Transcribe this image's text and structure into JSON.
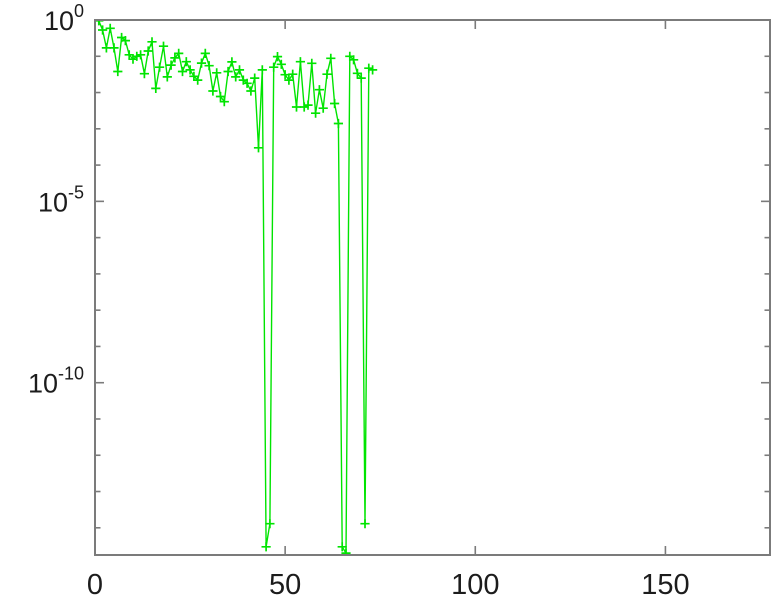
{
  "figure": {
    "background": "#ffffff",
    "line_color": "#00e400",
    "axis_color": "#7b7b7b",
    "label_color": "#1c1c1c"
  },
  "chart_data": {
    "type": "line",
    "title": "",
    "xlabel": "",
    "ylabel": "",
    "legend": null,
    "grid": false,
    "y_scale": "log",
    "marker": "+",
    "xlim": [
      0,
      177.5
    ],
    "ylim_log": [
      -14.75,
      0
    ],
    "x_ticks": [
      0,
      50,
      100,
      150
    ],
    "x_tick_labels": [
      "0",
      "50",
      "100",
      "150"
    ],
    "y_major_tick_exponents": [
      0,
      -5,
      -10
    ],
    "y_tick_base": "10",
    "y_tick_exponent_labels": [
      "0",
      "-5",
      "-10"
    ],
    "y_minor_ticks_every_decade": true,
    "x": [
      1,
      2,
      3,
      4,
      5,
      6,
      7,
      8,
      9,
      10,
      11,
      12,
      13,
      14,
      15,
      16,
      17,
      18,
      19,
      20,
      21,
      22,
      23,
      24,
      25,
      26,
      27,
      28,
      29,
      30,
      31,
      32,
      33,
      34,
      35,
      36,
      37,
      38,
      39,
      40,
      41,
      42,
      43,
      44,
      45,
      46,
      47,
      48,
      49,
      50,
      51,
      52,
      53,
      54,
      55,
      56,
      57,
      58,
      59,
      60,
      61,
      62,
      63,
      64,
      65,
      66,
      67,
      68,
      69,
      70,
      71,
      72,
      73
    ],
    "values": [
      0.95,
      0.53,
      0.17,
      0.59,
      0.17,
      0.038,
      0.33,
      0.27,
      0.11,
      0.083,
      0.1,
      0.11,
      0.033,
      0.14,
      0.25,
      0.013,
      0.05,
      0.19,
      0.027,
      0.057,
      0.09,
      0.12,
      0.038,
      0.071,
      0.042,
      0.028,
      0.022,
      0.065,
      0.12,
      0.055,
      0.011,
      0.035,
      0.0078,
      0.0056,
      0.038,
      0.07,
      0.027,
      0.042,
      0.022,
      0.018,
      0.011,
      0.025,
      0.0003,
      0.042,
      3e-15,
      1.3e-14,
      0.05,
      0.098,
      0.06,
      0.031,
      0.022,
      0.032,
      0.004,
      0.071,
      0.004,
      0.0045,
      0.064,
      0.0027,
      0.012,
      0.0037,
      0.032,
      0.088,
      0.005,
      0.0014,
      3e-15,
      2e-15,
      0.1,
      0.08,
      0.034,
      0.025,
      1.3e-14,
      0.047,
      0.042
    ]
  }
}
